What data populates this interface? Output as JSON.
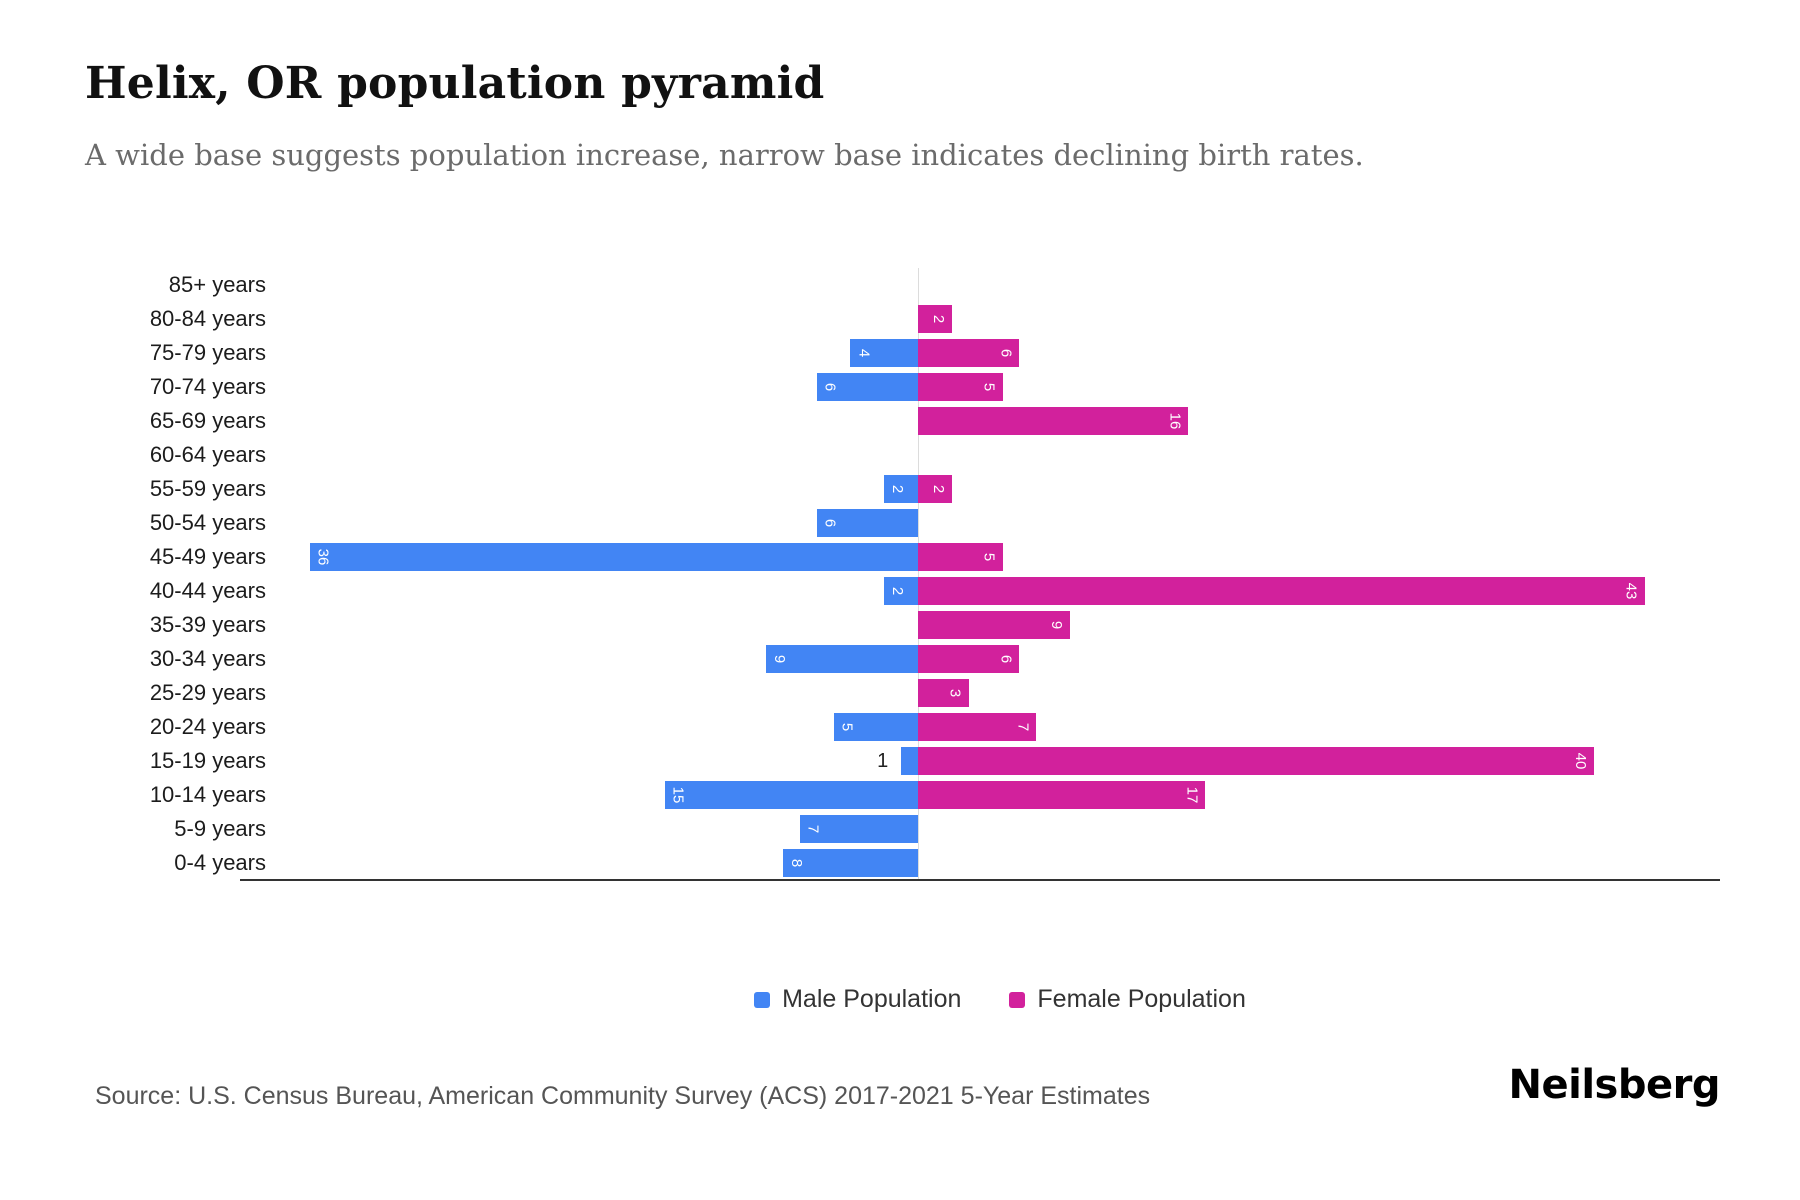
{
  "header": {
    "title": "Helix, OR population pyramid",
    "subtitle": "A wide base suggests population increase, narrow base indicates declining birth rates."
  },
  "chart_data": {
    "type": "bar",
    "variant": "population-pyramid",
    "title": "Helix, OR population pyramid",
    "categories": [
      "85+ years",
      "80-84 years",
      "75-79 years",
      "70-74 years",
      "65-69 years",
      "60-64 years",
      "55-59 years",
      "50-54 years",
      "45-49 years",
      "40-44 years",
      "35-39 years",
      "30-34 years",
      "25-29 years",
      "20-24 years",
      "15-19 years",
      "10-14 years",
      "5-9 years",
      "0-4 years"
    ],
    "series": [
      {
        "name": "Male Population",
        "color": "#4285F4",
        "side": "left",
        "values": [
          0,
          0,
          4,
          6,
          0,
          0,
          2,
          6,
          36,
          2,
          0,
          9,
          0,
          5,
          1,
          15,
          7,
          8
        ]
      },
      {
        "name": "Female Population",
        "color": "#D2219C",
        "side": "right",
        "values": [
          0,
          2,
          6,
          5,
          16,
          0,
          2,
          0,
          5,
          43,
          9,
          6,
          3,
          7,
          40,
          17,
          0,
          0
        ]
      }
    ],
    "xlim": [
      -45,
      45
    ],
    "grid": "center-line-only",
    "legend_position": "bottom",
    "value_labels": "inside-bar-rotated-white"
  },
  "footer": {
    "source": "Source: U.S. Census Bureau, American Community Survey (ACS) 2017-2021 5-Year Estimates",
    "brand": "Neilsberg"
  }
}
